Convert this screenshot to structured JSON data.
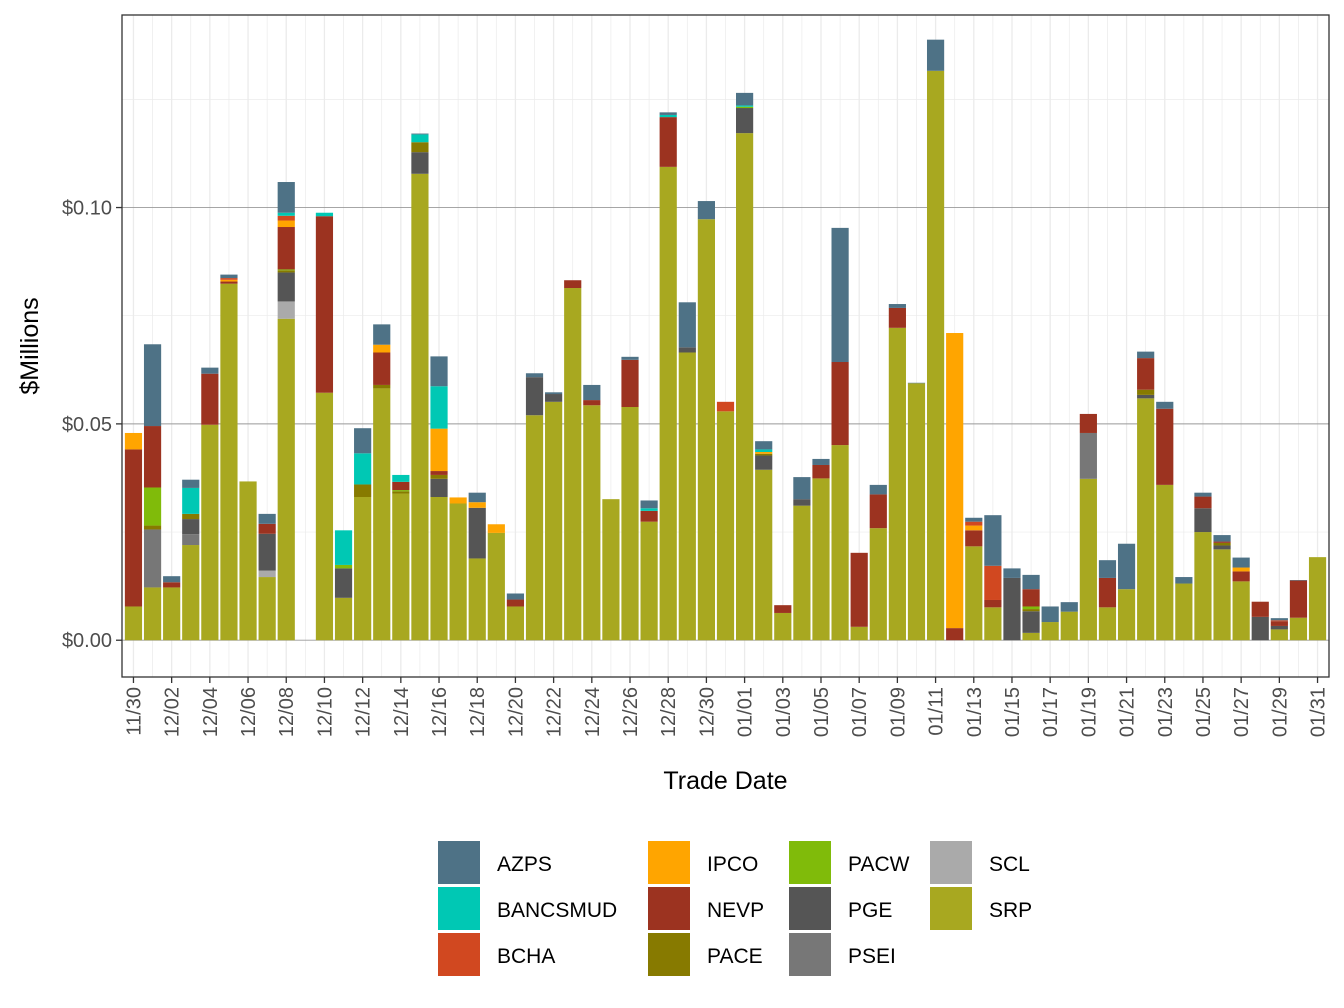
{
  "chart_data": {
    "type": "bar",
    "stacked": true,
    "xlabel": "Trade Date",
    "ylabel": "$Millions",
    "ylim": [
      -0.0085,
      0.1445
    ],
    "y_ticks": [
      {
        "value": 0.0,
        "label": "$0.00"
      },
      {
        "value": 0.05,
        "label": "$0.05"
      },
      {
        "value": 0.1,
        "label": "$0.10"
      }
    ],
    "x_tick_labels": [
      "11/30",
      "12/02",
      "12/04",
      "12/06",
      "12/08",
      "12/10",
      "12/12",
      "12/14",
      "12/16",
      "12/18",
      "12/20",
      "12/22",
      "12/24",
      "12/26",
      "12/28",
      "12/30",
      "01/01",
      "01/03",
      "01/05",
      "01/07",
      "01/09",
      "01/11",
      "01/13",
      "01/15",
      "01/17",
      "01/19",
      "01/21",
      "01/23",
      "01/25",
      "01/27",
      "01/29",
      "01/31"
    ],
    "grid": true,
    "legend_position": "bottom",
    "categories": [
      "11/30",
      "12/01",
      "12/02",
      "12/03",
      "12/04",
      "12/05",
      "12/06",
      "12/07",
      "12/08",
      "12/09",
      "12/10",
      "12/11",
      "12/12",
      "12/13",
      "12/14",
      "12/15",
      "12/16",
      "12/17",
      "12/18",
      "12/19",
      "12/20",
      "12/21",
      "12/22",
      "12/23",
      "12/24",
      "12/25",
      "12/26",
      "12/27",
      "12/28",
      "12/29",
      "12/30",
      "12/31",
      "01/01",
      "01/02",
      "01/03",
      "01/04",
      "01/05",
      "01/06",
      "01/07",
      "01/08",
      "01/09",
      "01/10",
      "01/11",
      "01/12",
      "01/13",
      "01/14",
      "01/15",
      "01/16",
      "01/17",
      "01/18",
      "01/19",
      "01/20",
      "01/21",
      "01/22",
      "01/23",
      "01/24",
      "01/25",
      "01/26",
      "01/27",
      "01/28",
      "01/29",
      "01/30",
      "01/31"
    ],
    "series": [
      {
        "name": "SRP",
        "color": "#a8a820",
        "values": [
          0.0078,
          0.0122,
          0.0122,
          0.022,
          0.0498,
          0.0824,
          0.0367,
          0.0146,
          0.0743,
          0.0,
          0.0572,
          0.0098,
          0.0331,
          0.0582,
          0.0339,
          0.1078,
          0.0331,
          0.0316,
          0.0189,
          0.0248,
          0.0078,
          0.052,
          0.0551,
          0.0814,
          0.0543,
          0.0326,
          0.0539,
          0.0274,
          0.1094,
          0.0665,
          0.0973,
          0.0529,
          0.1172,
          0.0394,
          0.0063,
          0.0311,
          0.0374,
          0.0451,
          0.0031,
          0.0259,
          0.0722,
          0.0594,
          0.1316,
          0.0,
          0.0217,
          0.0076,
          0.0,
          0.0017,
          0.0042,
          0.0066,
          0.0373,
          0.0076,
          0.0118,
          0.0559,
          0.0359,
          0.0131,
          0.025,
          0.021,
          0.0136,
          0.0,
          0.0025,
          0.0052,
          0.0192
        ]
      },
      {
        "name": "SCL",
        "color": "#aaaaaa",
        "values": [
          0,
          0,
          0,
          0,
          0,
          0,
          0,
          0.0015,
          0.004,
          0,
          0,
          0,
          0,
          0,
          0,
          0,
          0,
          0,
          0,
          0,
          0,
          0,
          0,
          0,
          0,
          0,
          0,
          0,
          0,
          0,
          0,
          0,
          0,
          0,
          0,
          0,
          0,
          0,
          0,
          0,
          0,
          0,
          0,
          0,
          0,
          0,
          0,
          0,
          0,
          0,
          0,
          0,
          0,
          0,
          0,
          0,
          0,
          0,
          0,
          0,
          0,
          0,
          0
        ]
      },
      {
        "name": "PSEI",
        "color": "#777777",
        "values": [
          0,
          0.0134,
          0,
          0.0025,
          0,
          0,
          0,
          0,
          0,
          0,
          0,
          0,
          0,
          0,
          0,
          0,
          0,
          0,
          0,
          0,
          0,
          0,
          0,
          0,
          0,
          0,
          0,
          0,
          0,
          0,
          0,
          0,
          0,
          0,
          0,
          0,
          0,
          0,
          0,
          0,
          0,
          0,
          0,
          0,
          0,
          0,
          0,
          0,
          0,
          0,
          0.0106,
          0,
          0,
          0,
          0,
          0,
          0,
          0,
          0,
          0,
          0,
          0,
          0
        ]
      },
      {
        "name": "PGE",
        "color": "#555555",
        "values": [
          0,
          0,
          0,
          0.0035,
          0,
          0,
          0,
          0.0085,
          0.0067,
          0,
          0,
          0.0068,
          0,
          0,
          0,
          0.005,
          0.0042,
          0,
          0.0117,
          0,
          0,
          0.0088,
          0.0018,
          0,
          0,
          0,
          0,
          0,
          0,
          0.0012,
          0,
          0,
          0.0058,
          0.0033,
          0,
          0.0015,
          0,
          0,
          0,
          0,
          0,
          0,
          0,
          0,
          0,
          0,
          0.0144,
          0.005,
          0,
          0,
          0,
          0,
          0,
          0.0008,
          0,
          0,
          0.0055,
          0.0009,
          0,
          0.0054,
          0.0008,
          0,
          0
        ]
      },
      {
        "name": "PACE",
        "color": "#877a00",
        "values": [
          0,
          0.0009,
          0,
          0.0012,
          0,
          0,
          0,
          0,
          0.0005,
          0,
          0,
          0,
          0.0029,
          0.0008,
          0.0005,
          0.0023,
          0.0009,
          0,
          0,
          0,
          0,
          0,
          0,
          0,
          0,
          0,
          0,
          0,
          0,
          0,
          0,
          0,
          0,
          0.0004,
          0,
          0,
          0,
          0,
          0,
          0,
          0,
          0,
          0,
          0,
          0,
          0,
          0,
          0.0005,
          0,
          0,
          0,
          0,
          0,
          0.0012,
          0,
          0,
          0,
          0.0006,
          0,
          0,
          0,
          0,
          0
        ]
      },
      {
        "name": "PACW",
        "color": "#80bb0a",
        "values": [
          0,
          0.0088,
          0,
          0,
          0,
          0,
          0,
          0,
          0.0002,
          0,
          0,
          0.0008,
          0,
          0,
          0.0003,
          0,
          0,
          0,
          0,
          0,
          0,
          0,
          0,
          0,
          0,
          0,
          0,
          0,
          0,
          0,
          0,
          0,
          0.0003,
          0,
          0,
          0,
          0,
          0,
          0,
          0,
          0,
          0,
          0,
          0,
          0,
          0,
          0,
          0.0006,
          0,
          0,
          0,
          0,
          0,
          0,
          0,
          0,
          0,
          0,
          0,
          0,
          0,
          0,
          0
        ]
      },
      {
        "name": "NEVP",
        "color": "#9c3320",
        "values": [
          0.0363,
          0.0142,
          0.0012,
          0,
          0.0118,
          0.0005,
          0,
          0.0023,
          0.0098,
          0.0,
          0.0408,
          0,
          0,
          0.0075,
          0.0019,
          0,
          0.0009,
          0,
          0,
          0,
          0.0016,
          0,
          0,
          0.0018,
          0.0012,
          0,
          0.0109,
          0.0025,
          0.0115,
          0,
          0,
          0,
          0,
          0,
          0.0018,
          0,
          0.0031,
          0.0192,
          0.0171,
          0.0078,
          0.0046,
          0,
          0,
          0.0028,
          0.0037,
          0.0017,
          0,
          0.004,
          0,
          0,
          0.0044,
          0.0068,
          0,
          0.0073,
          0.0176,
          0,
          0.0027,
          0.0003,
          0.0023,
          0.0035,
          0.0011,
          0.0086,
          0
        ]
      },
      {
        "name": "IPCO",
        "color": "#ffa500",
        "values": [
          0.0038,
          0,
          0,
          0,
          0,
          0.0004,
          0,
          0,
          0.0015,
          0,
          0,
          0,
          0,
          0.0018,
          0,
          0,
          0.0098,
          0.0014,
          0.0013,
          0.002,
          0,
          0,
          0,
          0,
          0,
          0,
          0,
          0,
          0,
          0,
          0,
          0,
          0,
          0.0004,
          0,
          0,
          0,
          0,
          0,
          0,
          0,
          0,
          0,
          0.0682,
          0.0011,
          0,
          0,
          0,
          0,
          0,
          0,
          0,
          0,
          0,
          0,
          0,
          0,
          0,
          0.0009,
          0,
          0,
          0,
          0
        ]
      },
      {
        "name": "BCHA",
        "color": "#d14820",
        "values": [
          0,
          0,
          0,
          0,
          0,
          0.0004,
          0,
          0,
          0.0011,
          0,
          0,
          0,
          0,
          0,
          0,
          0,
          0,
          0,
          0,
          0,
          0,
          0,
          0,
          0,
          0,
          0,
          0,
          0,
          0,
          0,
          0,
          0.0022,
          0,
          0,
          0,
          0,
          0,
          0,
          0,
          0,
          0,
          0,
          0,
          0,
          0.0009,
          0.0079,
          0,
          0,
          0,
          0,
          0,
          0,
          0,
          0,
          0,
          0,
          0,
          0,
          0,
          0,
          0.0002,
          0,
          0
        ]
      },
      {
        "name": "BANCSMUD",
        "color": "#00c8b4",
        "values": [
          0,
          0,
          0,
          0.006,
          0,
          0,
          0,
          0,
          0.0007,
          0,
          0.0008,
          0.008,
          0.0072,
          0,
          0.0016,
          0.0018,
          0.0098,
          0,
          0,
          0,
          0,
          0,
          0,
          0,
          0,
          0,
          0,
          0.0006,
          0.0005,
          0,
          0,
          0,
          0.0003,
          0.0006,
          0,
          0,
          0,
          0,
          0,
          0,
          0,
          0,
          0,
          0,
          0,
          0,
          0,
          0,
          0,
          0,
          0,
          0,
          0,
          0,
          0,
          0,
          0,
          0,
          0,
          0,
          0,
          0,
          0
        ]
      },
      {
        "name": "AZPS",
        "color": "#4e7286",
        "values": [
          0,
          0.0189,
          0.0014,
          0.0019,
          0.0014,
          0.0008,
          0,
          0.0023,
          0.0071,
          0,
          0,
          0,
          0.0058,
          0.0047,
          0,
          0.0002,
          0.0069,
          0,
          0.0022,
          0,
          0.0014,
          0.0009,
          0.0004,
          0,
          0.0035,
          0,
          0.0007,
          0.0018,
          0.0006,
          0.0104,
          0.0042,
          0,
          0.0029,
          0.0019,
          0,
          0.0051,
          0.0014,
          0.031,
          0,
          0.0022,
          0.0009,
          0.0001,
          0.0072,
          0,
          0.0009,
          0.0117,
          0.0022,
          0.0033,
          0.0036,
          0.0022,
          0,
          0.0041,
          0.0105,
          0.0015,
          0.0016,
          0.0015,
          0.0009,
          0.0015,
          0.0023,
          0,
          0.0005,
          0.0001,
          0
        ]
      }
    ],
    "legend_order": [
      "AZPS",
      "BANCSMUD",
      "BCHA",
      "IPCO",
      "NEVP",
      "PACE",
      "PACW",
      "PGE",
      "PSEI",
      "SCL",
      "SRP"
    ]
  }
}
